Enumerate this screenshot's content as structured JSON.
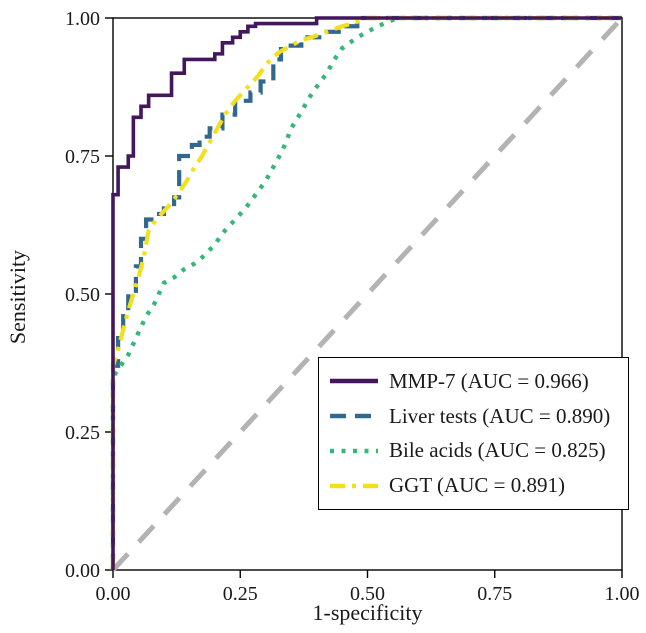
{
  "chart_data": {
    "type": "line",
    "title": "",
    "xlabel": "1-specificity",
    "ylabel": "Sensitivity",
    "xlim": [
      0,
      1
    ],
    "ylim": [
      0,
      1
    ],
    "xticks": [
      "0.00",
      "0.25",
      "0.50",
      "0.75",
      "1.00"
    ],
    "yticks": [
      "0.00",
      "0.25",
      "0.50",
      "0.75",
      "1.00"
    ],
    "grid": false,
    "legend_position": "lower right",
    "reference_line": {
      "name": "chance-diagonal",
      "color": "#b3b3b3",
      "style": "dashed",
      "width": 5,
      "points": [
        [
          0,
          0
        ],
        [
          1,
          1
        ]
      ]
    },
    "series": [
      {
        "name": "Liver tests (AUC = 0.890)",
        "auc": 0.89,
        "color": "#31688e",
        "style": "dashed",
        "width": 4.2,
        "points": [
          [
            0,
            0
          ],
          [
            0,
            0.37
          ],
          [
            0.01,
            0.37
          ],
          [
            0.01,
            0.42
          ],
          [
            0.02,
            0.42
          ],
          [
            0.02,
            0.47
          ],
          [
            0.03,
            0.47
          ],
          [
            0.03,
            0.5
          ],
          [
            0.045,
            0.5
          ],
          [
            0.045,
            0.55
          ],
          [
            0.055,
            0.55
          ],
          [
            0.055,
            0.6
          ],
          [
            0.065,
            0.6
          ],
          [
            0.065,
            0.635
          ],
          [
            0.08,
            0.635
          ],
          [
            0.08,
            0.645
          ],
          [
            0.1,
            0.645
          ],
          [
            0.1,
            0.655
          ],
          [
            0.12,
            0.655
          ],
          [
            0.12,
            0.675
          ],
          [
            0.13,
            0.675
          ],
          [
            0.13,
            0.75
          ],
          [
            0.155,
            0.75
          ],
          [
            0.155,
            0.77
          ],
          [
            0.17,
            0.77
          ],
          [
            0.17,
            0.785
          ],
          [
            0.19,
            0.785
          ],
          [
            0.19,
            0.8
          ],
          [
            0.215,
            0.8
          ],
          [
            0.215,
            0.825
          ],
          [
            0.24,
            0.825
          ],
          [
            0.24,
            0.85
          ],
          [
            0.27,
            0.85
          ],
          [
            0.27,
            0.865
          ],
          [
            0.29,
            0.865
          ],
          [
            0.29,
            0.885
          ],
          [
            0.315,
            0.885
          ],
          [
            0.315,
            0.925
          ],
          [
            0.33,
            0.925
          ],
          [
            0.33,
            0.95
          ],
          [
            0.37,
            0.95
          ],
          [
            0.37,
            0.965
          ],
          [
            0.41,
            0.965
          ],
          [
            0.41,
            0.975
          ],
          [
            0.45,
            0.975
          ],
          [
            0.45,
            0.985
          ],
          [
            0.48,
            0.985
          ],
          [
            0.48,
            1
          ],
          [
            1,
            1
          ]
        ]
      },
      {
        "name": "Bile acids (AUC = 0.825)",
        "auc": 0.825,
        "color": "#35b779",
        "style": "dotted",
        "width": 4.4,
        "points": [
          [
            0,
            0
          ],
          [
            0,
            0.35
          ],
          [
            0.015,
            0.37
          ],
          [
            0.03,
            0.39
          ],
          [
            0.04,
            0.41
          ],
          [
            0.05,
            0.43
          ],
          [
            0.065,
            0.46
          ],
          [
            0.08,
            0.48
          ],
          [
            0.09,
            0.5
          ],
          [
            0.1,
            0.52
          ],
          [
            0.12,
            0.53
          ],
          [
            0.14,
            0.545
          ],
          [
            0.16,
            0.555
          ],
          [
            0.18,
            0.57
          ],
          [
            0.2,
            0.59
          ],
          [
            0.22,
            0.615
          ],
          [
            0.24,
            0.635
          ],
          [
            0.26,
            0.655
          ],
          [
            0.28,
            0.68
          ],
          [
            0.3,
            0.705
          ],
          [
            0.315,
            0.73
          ],
          [
            0.33,
            0.755
          ],
          [
            0.34,
            0.775
          ],
          [
            0.35,
            0.8
          ],
          [
            0.37,
            0.83
          ],
          [
            0.385,
            0.855
          ],
          [
            0.4,
            0.875
          ],
          [
            0.42,
            0.9
          ],
          [
            0.435,
            0.925
          ],
          [
            0.45,
            0.945
          ],
          [
            0.465,
            0.955
          ],
          [
            0.48,
            0.965
          ],
          [
            0.5,
            0.975
          ],
          [
            0.52,
            0.985
          ],
          [
            0.545,
            0.995
          ],
          [
            0.56,
            1
          ],
          [
            1,
            1
          ]
        ]
      },
      {
        "name": "GGT (AUC = 0.891)",
        "auc": 0.891,
        "color": "#f2df1d",
        "style": "dashdot",
        "width": 4.2,
        "points": [
          [
            0,
            0
          ],
          [
            0,
            0.37
          ],
          [
            0.01,
            0.4
          ],
          [
            0.02,
            0.435
          ],
          [
            0.03,
            0.47
          ],
          [
            0.04,
            0.5
          ],
          [
            0.05,
            0.53
          ],
          [
            0.06,
            0.565
          ],
          [
            0.07,
            0.615
          ],
          [
            0.085,
            0.635
          ],
          [
            0.1,
            0.65
          ],
          [
            0.115,
            0.665
          ],
          [
            0.13,
            0.685
          ],
          [
            0.145,
            0.705
          ],
          [
            0.16,
            0.73
          ],
          [
            0.175,
            0.75
          ],
          [
            0.19,
            0.775
          ],
          [
            0.205,
            0.8
          ],
          [
            0.22,
            0.825
          ],
          [
            0.24,
            0.85
          ],
          [
            0.255,
            0.865
          ],
          [
            0.27,
            0.88
          ],
          [
            0.285,
            0.895
          ],
          [
            0.3,
            0.915
          ],
          [
            0.315,
            0.93
          ],
          [
            0.33,
            0.94
          ],
          [
            0.35,
            0.95
          ],
          [
            0.37,
            0.96
          ],
          [
            0.39,
            0.965
          ],
          [
            0.42,
            0.975
          ],
          [
            0.45,
            0.985
          ],
          [
            0.47,
            0.99
          ],
          [
            0.5,
            1
          ],
          [
            1,
            1
          ]
        ]
      },
      {
        "name": "MMP-7 (AUC = 0.966)",
        "auc": 0.966,
        "color": "#44175c",
        "style": "solid",
        "width": 3.6,
        "points": [
          [
            0,
            0
          ],
          [
            0,
            0.68
          ],
          [
            0.01,
            0.68
          ],
          [
            0.01,
            0.73
          ],
          [
            0.03,
            0.73
          ],
          [
            0.03,
            0.75
          ],
          [
            0.04,
            0.75
          ],
          [
            0.04,
            0.82
          ],
          [
            0.055,
            0.82
          ],
          [
            0.055,
            0.84
          ],
          [
            0.07,
            0.84
          ],
          [
            0.07,
            0.86
          ],
          [
            0.115,
            0.86
          ],
          [
            0.115,
            0.9
          ],
          [
            0.14,
            0.9
          ],
          [
            0.14,
            0.925
          ],
          [
            0.2,
            0.925
          ],
          [
            0.2,
            0.935
          ],
          [
            0.215,
            0.935
          ],
          [
            0.215,
            0.955
          ],
          [
            0.235,
            0.955
          ],
          [
            0.235,
            0.965
          ],
          [
            0.25,
            0.965
          ],
          [
            0.25,
            0.975
          ],
          [
            0.265,
            0.975
          ],
          [
            0.265,
            0.985
          ],
          [
            0.28,
            0.985
          ],
          [
            0.28,
            0.99
          ],
          [
            0.4,
            0.99
          ],
          [
            0.4,
            1
          ],
          [
            1,
            1
          ]
        ]
      }
    ],
    "legend_order": [
      "MMP-7 (AUC = 0.966)",
      "Liver tests (AUC = 0.890)",
      "Bile acids (AUC = 0.825)",
      "GGT (AUC = 0.891)"
    ]
  }
}
